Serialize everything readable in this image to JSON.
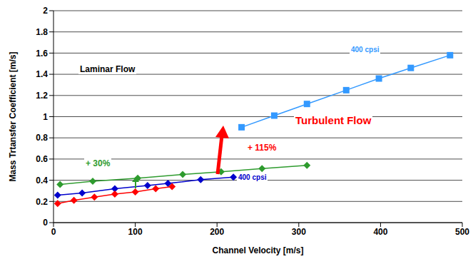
{
  "chart_data": {
    "type": "line",
    "x_label": "Channel Velocity [m/s]",
    "y_label": "Mass Trtansfer Coefficient [m/s]",
    "xlim": [
      0,
      500
    ],
    "xticks": [
      0,
      100,
      200,
      300,
      400,
      500
    ],
    "ylim": [
      0,
      2
    ],
    "yticks": [
      0,
      0.2,
      0.4,
      0.6,
      0.8,
      1,
      1.2,
      1.4,
      1.6,
      1.8,
      2
    ],
    "grid": true,
    "series": [
      {
        "color": "#2E9B2E",
        "marker": "diamond",
        "line_style": "solid",
        "x": [
          8,
          48,
          103,
          158,
          205,
          255,
          310
        ],
        "values": [
          0.36,
          0.39,
          0.42,
          0.455,
          0.48,
          0.51,
          0.54
        ]
      },
      {
        "color": "#0000CC",
        "marker": "diamond",
        "line_style": "solid",
        "x": [
          5,
          35,
          75,
          115,
          140,
          180,
          220
        ],
        "values": [
          0.26,
          0.28,
          0.32,
          0.35,
          0.37,
          0.405,
          0.43
        ]
      },
      {
        "color": "#FF0000",
        "marker": "diamond",
        "line_style": "solid",
        "x": [
          5,
          25,
          50,
          75,
          100,
          125,
          145
        ],
        "values": [
          0.18,
          0.21,
          0.24,
          0.27,
          0.29,
          0.32,
          0.34
        ]
      },
      {
        "color": "#3399FF",
        "marker": "square",
        "line_style": "solid",
        "x": [
          230,
          270,
          310,
          358,
          398,
          437,
          485
        ],
        "values": [
          0.9,
          1.01,
          1.12,
          1.25,
          1.36,
          1.46,
          1.58
        ]
      }
    ],
    "annotations": [
      {
        "text": "Laminar Flow",
        "color": "#000000"
      },
      {
        "text": "+ 30%",
        "color": "#2E9B2E"
      },
      {
        "text": "400 cpsi",
        "color": "#0000CC"
      },
      {
        "text": "+ 115%",
        "color": "#FF0000"
      },
      {
        "text": "Turbulent Flow",
        "color": "#FF0000"
      },
      {
        "text": "400 cpsi",
        "color": "#3399FF"
      }
    ]
  }
}
